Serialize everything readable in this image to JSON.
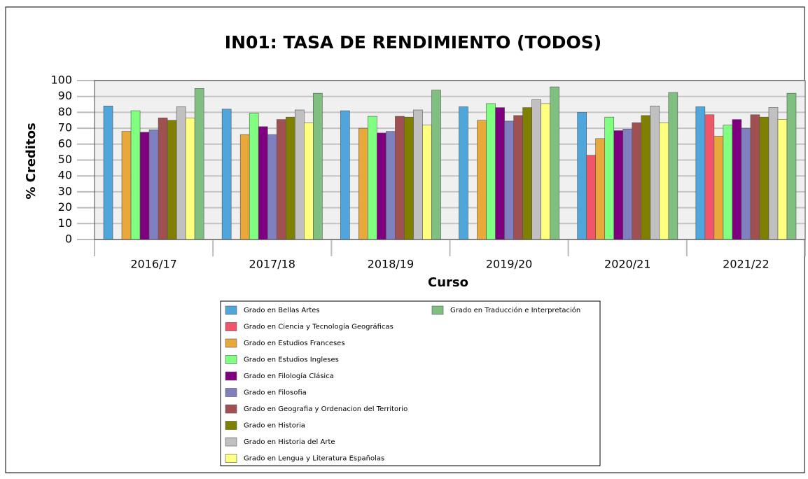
{
  "chart_data": {
    "type": "bar",
    "title": "IN01: TASA DE RENDIMIENTO (TODOS)",
    "x_label": "Curso",
    "y_label": "% Creditos",
    "categories": [
      "2016/17",
      "2017/18",
      "2018/19",
      "2019/20",
      "2020/21",
      "2021/22"
    ],
    "series": [
      {
        "name": "Grado en Bellas Artes",
        "color": "#4ea6dc",
        "values": [
          84,
          82,
          81,
          83.5,
          80,
          83.5
        ]
      },
      {
        "name": "Grado en Ciencia y Tecnología Geográficas",
        "color": "#f0566a",
        "values": [
          null,
          null,
          null,
          null,
          53,
          78.5
        ]
      },
      {
        "name": "Grado en Estudios Franceses",
        "color": "#e9a83a",
        "values": [
          68,
          66,
          70,
          75,
          63.5,
          65
        ]
      },
      {
        "name": "Grado en Estudios Ingleses",
        "color": "#80ff80",
        "values": [
          81,
          79.5,
          77.5,
          85.5,
          77,
          72
        ]
      },
      {
        "name": "Grado en Filología Clásica",
        "color": "#7f007f",
        "values": [
          67.5,
          71,
          67,
          83,
          68.5,
          75.5
        ]
      },
      {
        "name": "Grado en Filosofia",
        "color": "#8080c0",
        "values": [
          69,
          66,
          68,
          74.5,
          69.5,
          70
        ]
      },
      {
        "name": "Grado en Geografia y Ordenacion del Territorio",
        "color": "#a05050",
        "values": [
          76.5,
          75.5,
          77.5,
          78,
          73.5,
          78.5
        ]
      },
      {
        "name": "Grado en Historia",
        "color": "#808000",
        "values": [
          75,
          77,
          77,
          83,
          78,
          77
        ]
      },
      {
        "name": "Grado en Historia del Arte",
        "color": "#c0c0c0",
        "values": [
          83.5,
          81.5,
          81.5,
          88,
          84,
          83
        ]
      },
      {
        "name": "Grado en Lengua y Literatura Españolas",
        "color": "#ffff80",
        "values": [
          76.5,
          73.5,
          72,
          85.5,
          73.5,
          75.5
        ]
      },
      {
        "name": "Grado en Traducción e Interpretación",
        "color": "#7fbf7f",
        "values": [
          95,
          92,
          94,
          96,
          92.5,
          92
        ]
      }
    ],
    "ylim": [
      0,
      100
    ],
    "yticks": [
      0,
      10,
      20,
      30,
      40,
      50,
      60,
      70,
      80,
      90,
      100
    ],
    "grid": true,
    "legend": "bottom"
  }
}
